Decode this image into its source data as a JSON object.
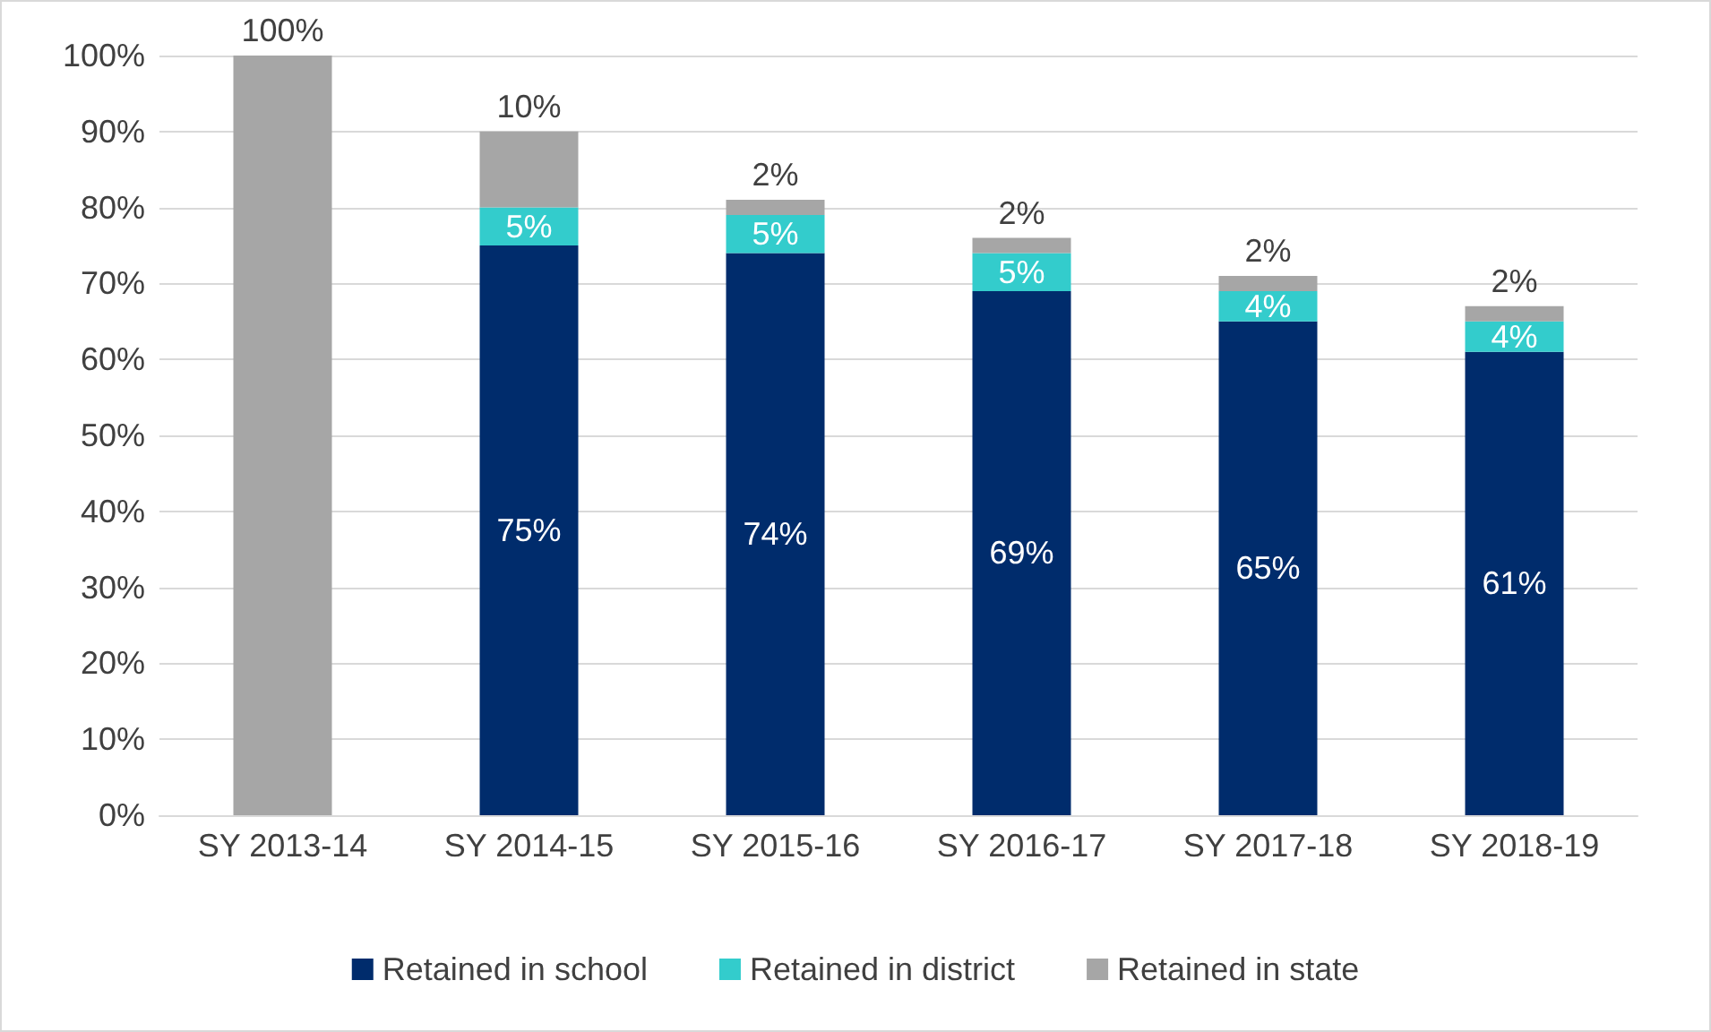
{
  "chart_data": {
    "type": "bar",
    "stacked": true,
    "categories": [
      "SY 2013-14",
      "SY 2014-15",
      "SY 2015-16",
      "SY 2016-17",
      "SY 2017-18",
      "SY 2018-19"
    ],
    "series": [
      {
        "name": "Retained in school",
        "color": "#002c6c",
        "values": [
          null,
          75,
          74,
          69,
          65,
          61
        ],
        "value_labels": [
          null,
          "75%",
          "74%",
          "69%",
          "65%",
          "61%"
        ]
      },
      {
        "name": "Retained in district",
        "color": "#33cccc",
        "values": [
          null,
          5,
          5,
          5,
          4,
          4
        ],
        "value_labels": [
          null,
          "5%",
          "5%",
          "5%",
          "4%",
          "4%"
        ]
      },
      {
        "name": "Retained in state",
        "color": "#a6a6a6",
        "values": [
          100,
          10,
          2,
          2,
          2,
          2
        ],
        "value_labels": [
          "100%",
          "10%",
          "2%",
          "2%",
          "2%",
          "2%"
        ]
      }
    ],
    "ylim": [
      0,
      100
    ],
    "yticks": [
      {
        "value": 0,
        "label": "0%"
      },
      {
        "value": 10,
        "label": "10%"
      },
      {
        "value": 20,
        "label": "20%"
      },
      {
        "value": 30,
        "label": "30%"
      },
      {
        "value": 40,
        "label": "40%"
      },
      {
        "value": 50,
        "label": "50%"
      },
      {
        "value": 60,
        "label": "60%"
      },
      {
        "value": 70,
        "label": "70%"
      },
      {
        "value": 80,
        "label": "80%"
      },
      {
        "value": 90,
        "label": "90%"
      },
      {
        "value": 100,
        "label": "100%"
      }
    ],
    "grid": "y",
    "legend": "bottom"
  }
}
